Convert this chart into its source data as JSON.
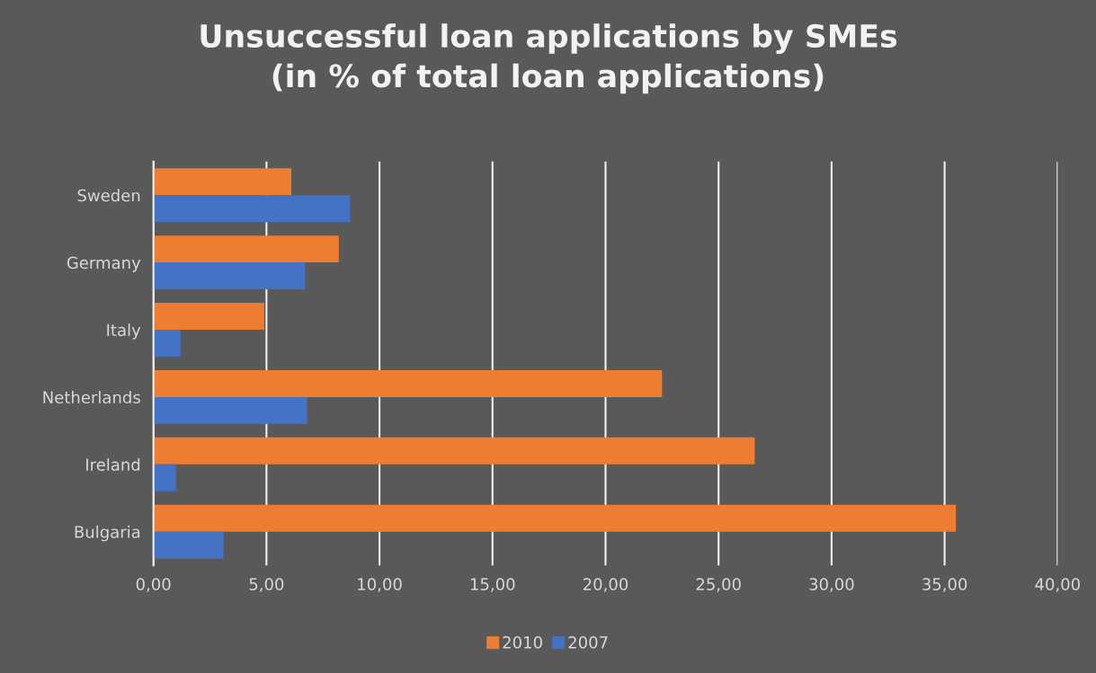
{
  "chart_data": {
    "type": "bar",
    "orientation": "horizontal",
    "title": "Unsuccessful loan applications by SMEs\n(in % of total loan applications)",
    "categories": [
      "Sweden",
      "Germany",
      "Italy",
      "Netherlands",
      "Ireland",
      "Bulgaria"
    ],
    "series": [
      {
        "name": "2010",
        "color": "#ed7d31",
        "values": [
          6.1,
          8.2,
          4.9,
          22.5,
          26.6,
          35.5
        ]
      },
      {
        "name": "2007",
        "color": "#4472c4",
        "values": [
          8.7,
          6.7,
          1.2,
          6.8,
          1.0,
          3.1
        ]
      }
    ],
    "xlim": [
      0,
      40
    ],
    "xticks": [
      {
        "value": 0,
        "label": "0,00"
      },
      {
        "value": 5,
        "label": "5,00"
      },
      {
        "value": 10,
        "label": "10,00"
      },
      {
        "value": 15,
        "label": "15,00"
      },
      {
        "value": 20,
        "label": "20,00"
      },
      {
        "value": 25,
        "label": "25,00"
      },
      {
        "value": 30,
        "label": "30,00"
      },
      {
        "value": 35,
        "label": "35,00"
      },
      {
        "value": 40,
        "label": "40,00"
      }
    ],
    "grid": "x",
    "legend": "bottom"
  }
}
